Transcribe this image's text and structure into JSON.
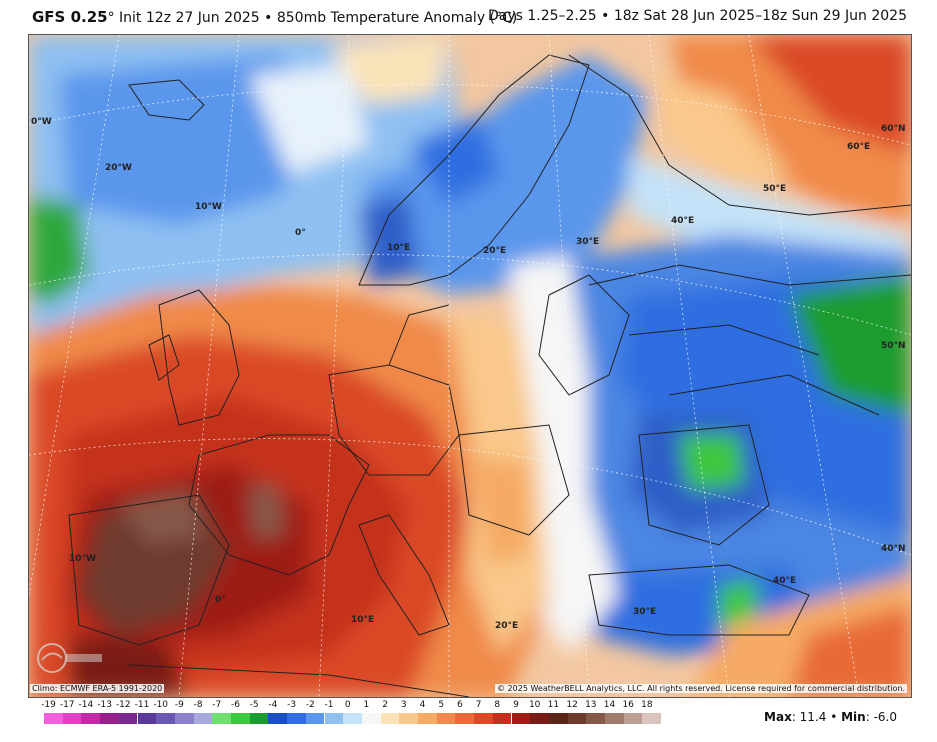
{
  "header": {
    "model": "GFS 0.25",
    "degree": "°",
    "init": " Init 12z 27 Jun 2025 • 850mb Temperature Anomaly (°C)",
    "valid": "Days 1.25–2.25 • 18z Sat 28 Jun 2025–18z Sun 29 Jun 2025"
  },
  "map": {
    "graticule_labels": [
      "0°W",
      "20°W",
      "10°W",
      "0°",
      "10°E",
      "20°E",
      "30°E",
      "40°E",
      "50°E",
      "60°E",
      "60°N",
      "50°N",
      "40°N",
      "40°E",
      "30°E",
      "20°E",
      "10°E",
      "0°",
      "10°W"
    ],
    "climo": "Climo: ECMWF ERA-5 1991-2020",
    "copyright": "© 2025 WeatherBELL Analytics, LLC. All rights reserved. License required for commercial distribution."
  },
  "colorbar": {
    "labels": [
      "-19",
      "-17",
      "-14",
      "-13",
      "-12",
      "-11",
      "-10",
      "-9",
      "-8",
      "-7",
      "-6",
      "-5",
      "-4",
      "-3",
      "-2",
      "-1",
      "0",
      "1",
      "2",
      "3",
      "4",
      "5",
      "6",
      "7",
      "8",
      "9",
      "10",
      "11",
      "12",
      "13",
      "14",
      "16",
      "18"
    ],
    "colors": [
      "#f25fdc",
      "#e040c8",
      "#c02aa6",
      "#9a1f8e",
      "#7a2a8e",
      "#5a3a9a",
      "#6a58b4",
      "#8a80cc",
      "#a8a8e0",
      "#6ee06e",
      "#3cc83c",
      "#1c9c2e",
      "#1a4fc0",
      "#2e6ee0",
      "#5a96ec",
      "#8ec0f2",
      "#c4e2f8",
      "#f6f6f6",
      "#fbe3b8",
      "#f9c88a",
      "#f6aa64",
      "#f08a4a",
      "#e86a36",
      "#da4a26",
      "#c4301c",
      "#9e1e16",
      "#7a1a14",
      "#5c2418",
      "#6e3a2e",
      "#86584a",
      "#a07a6c",
      "#bc9e92",
      "#d8c4bc"
    ]
  },
  "stats": {
    "max_label": "Max",
    "max_value": ": 11.4 • ",
    "min_label": "Min",
    "min_value": ": -6.0"
  },
  "colors": {
    "warm_dark": "#c4301c",
    "warm_mid": "#e86a36",
    "warm_light": "#f9c88a",
    "neutral": "#f6f6f6",
    "cool_light": "#8ec0f2",
    "cool_mid": "#4c86e2",
    "cool_dark": "#2e5ec8",
    "green": "#2ea83c",
    "brown": "#6e3a2e"
  }
}
